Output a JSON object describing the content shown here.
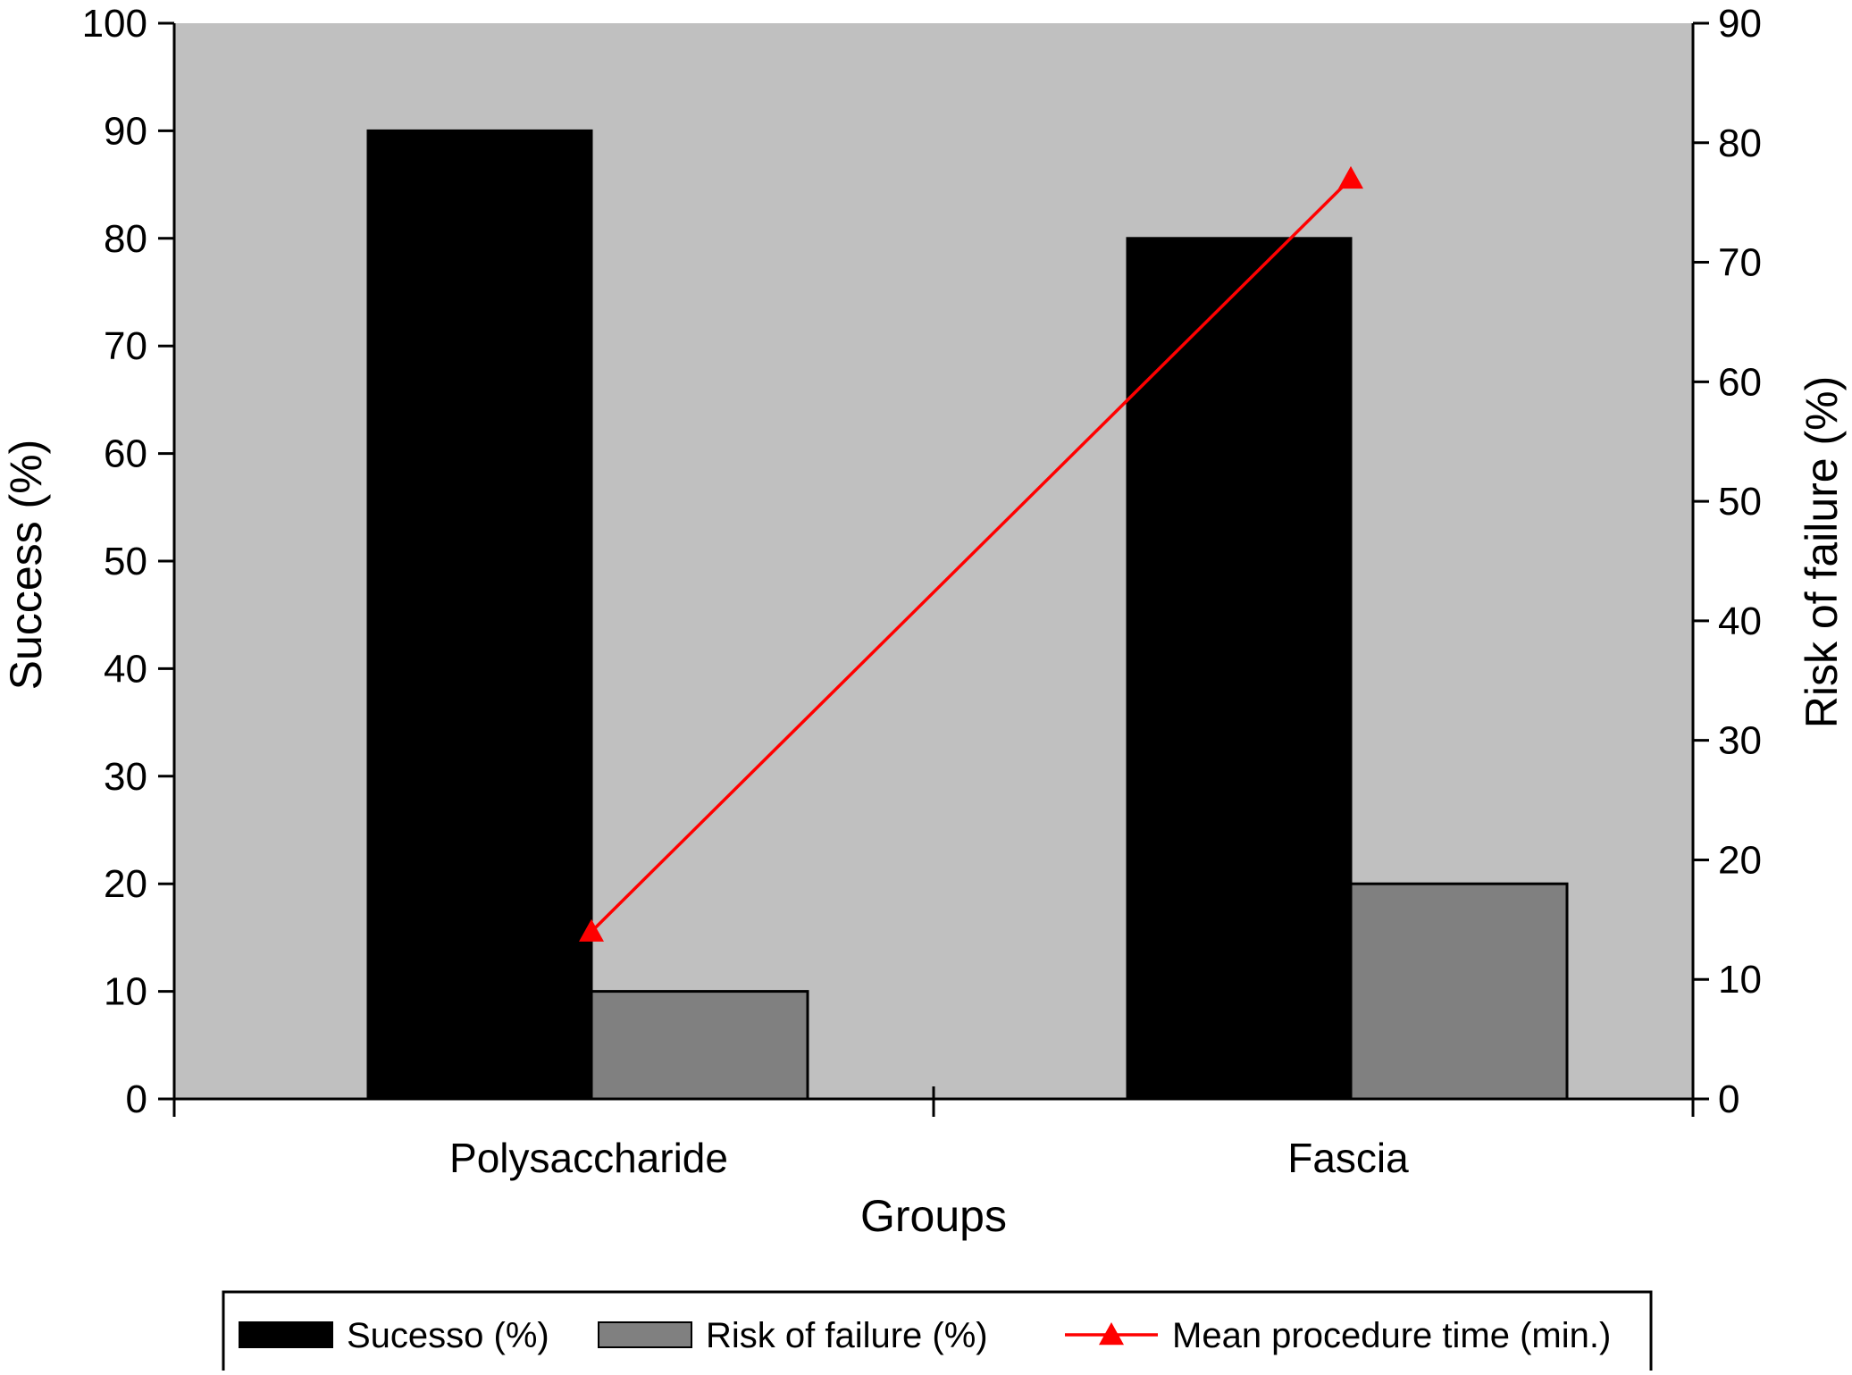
{
  "chart_data": {
    "type": "bar",
    "title": "",
    "xlabel": "Groups",
    "ylabel_left": "Success (%)",
    "ylabel_right": "Risk of failure (%)",
    "categories": [
      "Polysaccharide",
      "Fascia"
    ],
    "ylim_left": [
      0,
      100
    ],
    "ylim_right": [
      0,
      90
    ],
    "yticks_left": [
      0,
      10,
      20,
      30,
      40,
      50,
      60,
      70,
      80,
      90,
      100
    ],
    "yticks_right": [
      0,
      10,
      20,
      30,
      40,
      50,
      60,
      70,
      80,
      90
    ],
    "series": [
      {
        "name": "Sucesso (%)",
        "type": "bar",
        "axis": "left",
        "color": "#000000",
        "values": [
          90,
          80
        ]
      },
      {
        "name": "Risk of failure (%)",
        "type": "bar",
        "axis": "left",
        "color": "#808080",
        "values": [
          10,
          20
        ]
      },
      {
        "name": "Mean procedure time (min.)",
        "type": "line",
        "axis": "right",
        "color": "#ff0000",
        "marker": "triangle",
        "values": [
          14,
          77
        ]
      }
    ],
    "plot_background": "#c0c0c0",
    "grid": false,
    "legend_position": "bottom"
  }
}
